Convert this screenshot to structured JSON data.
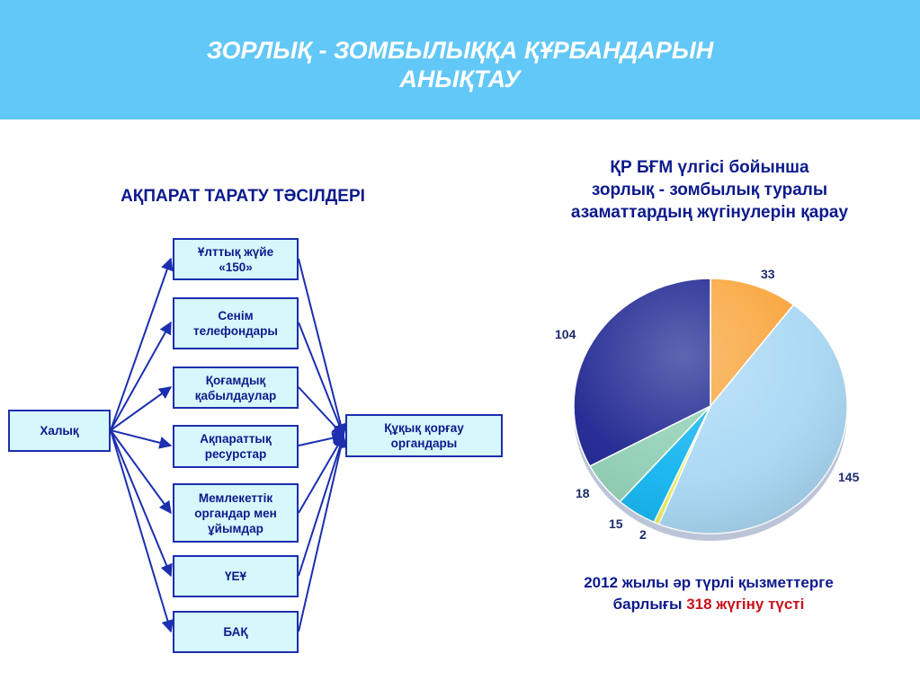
{
  "header": {
    "title_line1": "ЗОРЛЫҚ - ЗОМБЫЛЫҚҚА ҚҰРБАНДАРЫН",
    "title_line2": "АНЫҚТАУ",
    "background": "#62c8f7"
  },
  "diagram": {
    "title": "АҚПАРАТ ТАРАТУ ТӘСІЛДЕРІ",
    "source": {
      "label": "Халық"
    },
    "target": {
      "lines": [
        "Құқық қорғау",
        "органдары"
      ]
    },
    "channels": [
      {
        "lines": [
          "Ұлттық жүйе",
          "«150»"
        ]
      },
      {
        "lines": [
          "Сенім",
          "телефондары"
        ]
      },
      {
        "lines": [
          "Қоғамдық",
          "қабылдаулар"
        ]
      },
      {
        "lines": [
          "Ақпараттық",
          "ресурстар"
        ]
      },
      {
        "lines": [
          "Мемлекеттік",
          "органдар мен",
          "ұйымдар"
        ]
      },
      {
        "lines": [
          "ҮЕҰ"
        ]
      },
      {
        "lines": [
          "БАҚ"
        ]
      }
    ],
    "box_fill": "#d6f7fb",
    "line_color": "#1c2fae"
  },
  "right_panel": {
    "title_line1": "ҚР БҒМ  үлгісі бойынша",
    "title_line2": "зорлық -  зомбылық туралы",
    "title_line3": "азаматтардың жүгінулерін қарау",
    "footer_line1": "2012 жылы әр түрлі қызметтерге",
    "footer_line2_prefix": "барлығы",
    "footer_line2_highlight": "318 жүгіну түсті",
    "highlight_color": "#c8121b"
  },
  "chart_data": {
    "type": "pie",
    "total": 318,
    "slices": [
      {
        "label": "33",
        "value": 33,
        "color": "#f9a43a"
      },
      {
        "label": "145",
        "value": 145,
        "color": "#a9d8f5"
      },
      {
        "label": "2",
        "value": 2,
        "color": "#e8f05a"
      },
      {
        "label": "15",
        "value": 15,
        "color": "#12b4ef"
      },
      {
        "label": "18",
        "value": 18,
        "color": "#8fcfb4"
      },
      {
        "label": "104",
        "value": 104,
        "color": "#1c238f"
      }
    ]
  }
}
